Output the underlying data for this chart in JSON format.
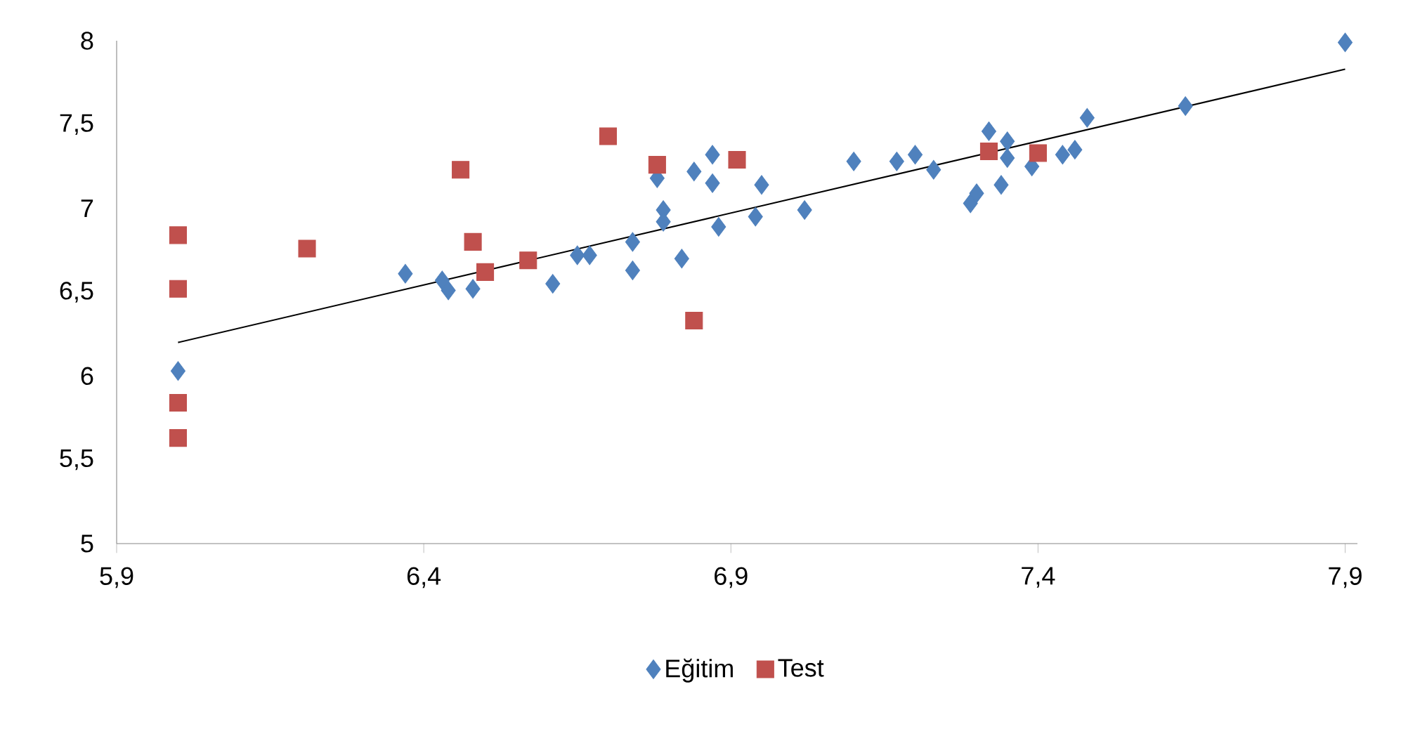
{
  "chart_data": {
    "type": "scatter",
    "xlim": [
      5.9,
      7.92
    ],
    "ylim": [
      5,
      8
    ],
    "xticks": [
      {
        "value": 5.9,
        "label": "5,9"
      },
      {
        "value": 6.4,
        "label": "6,4"
      },
      {
        "value": 6.9,
        "label": "6,9"
      },
      {
        "value": 7.4,
        "label": "7,4"
      },
      {
        "value": 7.9,
        "label": "7,9"
      }
    ],
    "yticks": [
      5,
      {
        "value": 5.5,
        "label": "5,5"
      },
      6,
      {
        "value": 6.5,
        "label": "6,5"
      },
      7,
      {
        "value": 7.5,
        "label": "7,5"
      },
      8
    ],
    "legend": "bottom",
    "grid": false,
    "series": [
      {
        "name": "Eğitim",
        "color": "#4f81bd",
        "marker": "diamond",
        "x": [
          6.0,
          6.37,
          6.43,
          6.44,
          6.48,
          6.61,
          6.65,
          6.67,
          6.74,
          6.74,
          6.78,
          6.79,
          6.79,
          6.82,
          6.84,
          6.87,
          6.87,
          6.88,
          6.94,
          6.95,
          7.02,
          7.1,
          7.17,
          7.2,
          7.23,
          7.29,
          7.3,
          7.32,
          7.35,
          7.34,
          7.35,
          7.39,
          7.44,
          7.46,
          7.48,
          7.64,
          7.9
        ],
        "values": [
          6.03,
          6.61,
          6.57,
          6.51,
          6.52,
          6.55,
          6.72,
          6.72,
          6.63,
          6.8,
          7.18,
          6.99,
          6.92,
          6.7,
          7.22,
          7.32,
          7.15,
          6.89,
          6.95,
          7.14,
          6.99,
          7.28,
          7.28,
          7.32,
          7.23,
          7.03,
          7.09,
          7.46,
          7.4,
          7.14,
          7.3,
          7.25,
          7.32,
          7.35,
          7.54,
          7.61,
          7.99
        ]
      },
      {
        "name": "Test",
        "color": "#c0504d",
        "marker": "square",
        "x": [
          6.0,
          6.0,
          6.0,
          6.0,
          6.21,
          6.46,
          6.48,
          6.5,
          6.57,
          6.7,
          6.78,
          6.84,
          6.91,
          7.32,
          7.4
        ],
        "values": [
          6.84,
          6.52,
          5.84,
          5.63,
          6.76,
          7.23,
          6.8,
          6.62,
          6.69,
          7.43,
          7.26,
          6.33,
          7.29,
          7.34,
          7.33
        ]
      },
      {
        "type": "line",
        "color": "#000000",
        "marker": "none",
        "x": [
          6.0,
          7.9
        ],
        "values": [
          6.2,
          7.83
        ]
      }
    ]
  }
}
